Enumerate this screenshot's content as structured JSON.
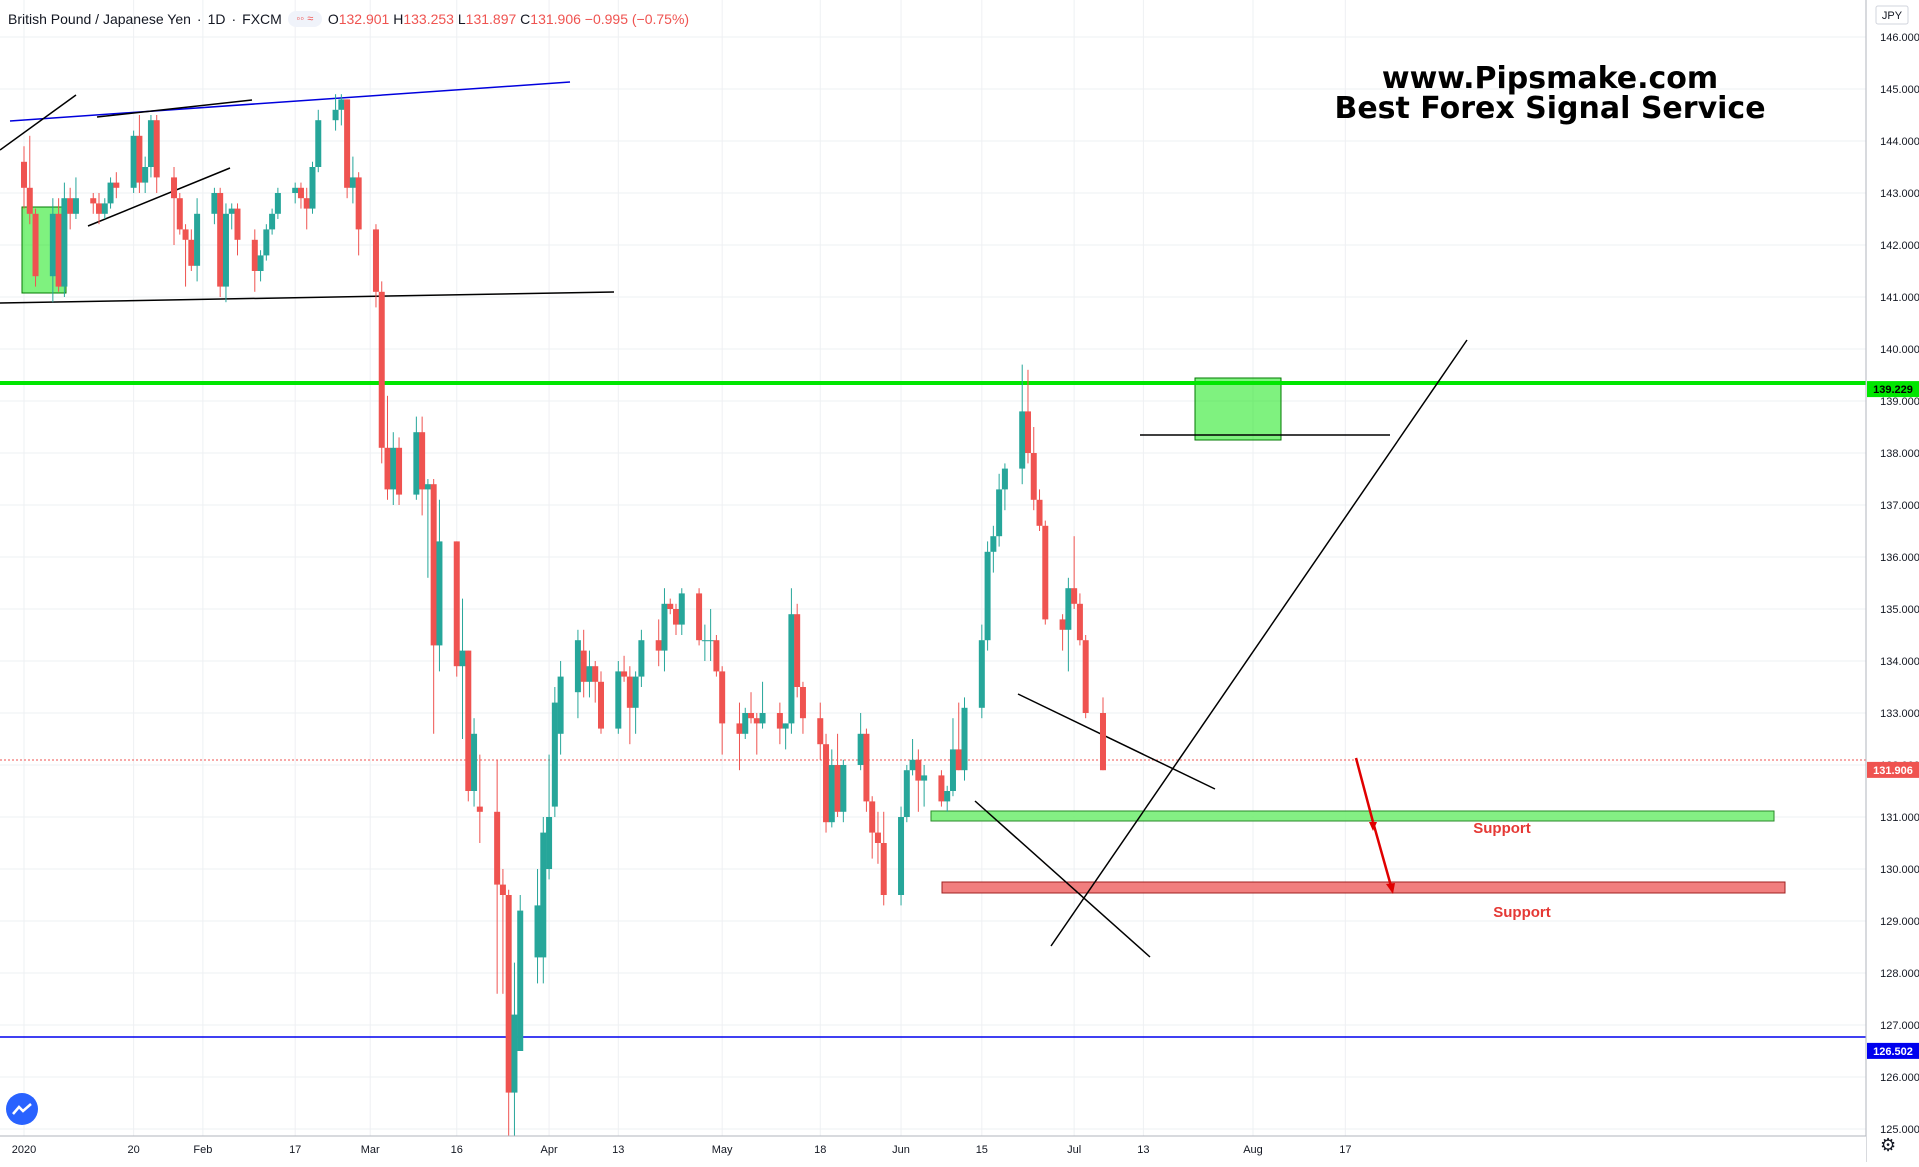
{
  "legend": {
    "symbol": "British Pound / Japanese Yen",
    "interval": "1D",
    "source": "FXCM",
    "o_label": "O",
    "o": "132.901",
    "h_label": "H",
    "h": "133.253",
    "l_label": "L",
    "l": "131.897",
    "c_label": "C",
    "c": "131.906",
    "change": "−0.995 (−0.75%)"
  },
  "watermark": {
    "line1": "www.Pipsmake.com",
    "line2": "Best Forex Signal Service"
  },
  "currency": "JPY",
  "support_labels": [
    "Support",
    "Support"
  ],
  "price_tags": [
    {
      "value": "139.229",
      "color": "#00e600"
    },
    {
      "value": "131.906",
      "color": "#ef5350"
    },
    {
      "value": "126.502",
      "color": "#0000ee"
    }
  ],
  "colors": {
    "up": "#26a69a",
    "down": "#ef5350",
    "grid": "#eef0f3",
    "support": "#e53935"
  },
  "chart_data": {
    "type": "candlestick",
    "y_ticks": [
      "146.000",
      "145.000",
      "144.000",
      "143.000",
      "142.000",
      "141.000",
      "140.000",
      "139.000",
      "138.000",
      "137.000",
      "136.000",
      "135.000",
      "134.000",
      "133.000",
      "132.000",
      "131.000",
      "130.000",
      "129.000",
      "128.000",
      "127.000",
      "126.000",
      "125.000"
    ],
    "ylim": [
      124.6,
      146.4
    ],
    "x_ticks": [
      "2020",
      "20",
      "Feb",
      "17",
      "Mar",
      "16",
      "Apr",
      "13",
      "May",
      "18",
      "Jun",
      "15",
      "Jul",
      "13",
      "Aug",
      "17"
    ],
    "x_tick_dates": [
      "2020-01-01",
      "2020-01-20",
      "2020-02-01",
      "2020-02-17",
      "2020-03-01",
      "2020-03-16",
      "2020-04-01",
      "2020-04-13",
      "2020-05-01",
      "2020-05-18",
      "2020-06-01",
      "2020-06-15",
      "2020-07-01",
      "2020-07-13",
      "2020-08-01",
      "2020-08-17"
    ],
    "candles": [
      {
        "date": "2020-01-01",
        "o": 143.6,
        "h": 143.9,
        "l": 142.7,
        "c": 143.1
      },
      {
        "date": "2020-01-02",
        "o": 143.1,
        "h": 144.1,
        "l": 142.4,
        "c": 142.6
      },
      {
        "date": "2020-01-03",
        "o": 142.6,
        "h": 142.7,
        "l": 141.2,
        "c": 141.4
      },
      {
        "date": "2020-01-06",
        "o": 141.4,
        "h": 142.9,
        "l": 140.9,
        "c": 142.6
      },
      {
        "date": "2020-01-07",
        "o": 142.6,
        "h": 142.9,
        "l": 141.1,
        "c": 141.2
      },
      {
        "date": "2020-01-08",
        "o": 141.2,
        "h": 143.2,
        "l": 141.0,
        "c": 142.9
      },
      {
        "date": "2020-01-09",
        "o": 142.9,
        "h": 143.1,
        "l": 142.3,
        "c": 142.6
      },
      {
        "date": "2020-01-10",
        "o": 142.6,
        "h": 143.3,
        "l": 142.5,
        "c": 142.9
      },
      {
        "date": "2020-01-13",
        "o": 142.9,
        "h": 143.0,
        "l": 142.6,
        "c": 142.8
      },
      {
        "date": "2020-01-14",
        "o": 142.8,
        "h": 143.0,
        "l": 142.4,
        "c": 142.6
      },
      {
        "date": "2020-01-15",
        "o": 142.6,
        "h": 142.9,
        "l": 142.5,
        "c": 142.8
      },
      {
        "date": "2020-01-16",
        "o": 142.8,
        "h": 143.3,
        "l": 142.7,
        "c": 143.2
      },
      {
        "date": "2020-01-17",
        "o": 143.2,
        "h": 143.4,
        "l": 142.9,
        "c": 143.1
      },
      {
        "date": "2020-01-20",
        "o": 143.1,
        "h": 144.2,
        "l": 143.0,
        "c": 144.1
      },
      {
        "date": "2020-01-21",
        "o": 144.1,
        "h": 144.5,
        "l": 143.0,
        "c": 143.2
      },
      {
        "date": "2020-01-22",
        "o": 143.2,
        "h": 143.7,
        "l": 143.0,
        "c": 143.5
      },
      {
        "date": "2020-01-23",
        "o": 143.5,
        "h": 144.5,
        "l": 143.3,
        "c": 144.4
      },
      {
        "date": "2020-01-24",
        "o": 144.4,
        "h": 144.5,
        "l": 143.0,
        "c": 143.3
      },
      {
        "date": "2020-01-27",
        "o": 143.3,
        "h": 143.5,
        "l": 142.0,
        "c": 142.9
      },
      {
        "date": "2020-01-28",
        "o": 142.9,
        "h": 143.0,
        "l": 142.2,
        "c": 142.3
      },
      {
        "date": "2020-01-29",
        "o": 142.3,
        "h": 142.4,
        "l": 141.2,
        "c": 142.1
      },
      {
        "date": "2020-01-30",
        "o": 142.1,
        "h": 142.3,
        "l": 141.5,
        "c": 141.6
      },
      {
        "date": "2020-01-31",
        "o": 141.6,
        "h": 142.9,
        "l": 141.3,
        "c": 142.6
      },
      {
        "date": "2020-02-03",
        "o": 142.6,
        "h": 143.1,
        "l": 142.4,
        "c": 143.0
      },
      {
        "date": "2020-02-04",
        "o": 143.0,
        "h": 143.1,
        "l": 141.0,
        "c": 141.2
      },
      {
        "date": "2020-02-05",
        "o": 141.2,
        "h": 142.8,
        "l": 140.9,
        "c": 142.6
      },
      {
        "date": "2020-02-06",
        "o": 142.6,
        "h": 142.8,
        "l": 142.3,
        "c": 142.7
      },
      {
        "date": "2020-02-07",
        "o": 142.7,
        "h": 142.8,
        "l": 141.8,
        "c": 142.1
      },
      {
        "date": "2020-02-10",
        "o": 142.1,
        "h": 142.3,
        "l": 141.1,
        "c": 141.5
      },
      {
        "date": "2020-02-11",
        "o": 141.5,
        "h": 141.9,
        "l": 141.3,
        "c": 141.8
      },
      {
        "date": "2020-02-12",
        "o": 141.8,
        "h": 142.4,
        "l": 141.7,
        "c": 142.3
      },
      {
        "date": "2020-02-13",
        "o": 142.3,
        "h": 142.7,
        "l": 142.2,
        "c": 142.6
      },
      {
        "date": "2020-02-14",
        "o": 142.6,
        "h": 143.1,
        "l": 142.5,
        "c": 143.0
      },
      {
        "date": "2020-02-17",
        "o": 143.0,
        "h": 143.2,
        "l": 142.8,
        "c": 143.1
      },
      {
        "date": "2020-02-18",
        "o": 143.1,
        "h": 143.2,
        "l": 142.7,
        "c": 142.9
      },
      {
        "date": "2020-02-19",
        "o": 142.9,
        "h": 143.1,
        "l": 142.3,
        "c": 142.7
      },
      {
        "date": "2020-02-20",
        "o": 142.7,
        "h": 143.6,
        "l": 142.6,
        "c": 143.5
      },
      {
        "date": "2020-02-21",
        "o": 143.5,
        "h": 144.6,
        "l": 143.4,
        "c": 144.4
      },
      {
        "date": "2020-02-24",
        "o": 144.4,
        "h": 144.9,
        "l": 144.2,
        "c": 144.6
      },
      {
        "date": "2020-02-25",
        "o": 144.6,
        "h": 144.9,
        "l": 144.3,
        "c": 144.8
      },
      {
        "date": "2020-02-26",
        "o": 144.8,
        "h": 144.8,
        "l": 142.9,
        "c": 143.1
      },
      {
        "date": "2020-02-27",
        "o": 143.1,
        "h": 143.7,
        "l": 142.8,
        "c": 143.3
      },
      {
        "date": "2020-02-28",
        "o": 143.3,
        "h": 143.4,
        "l": 141.8,
        "c": 142.3
      },
      {
        "date": "2020-03-02",
        "o": 142.3,
        "h": 142.4,
        "l": 140.8,
        "c": 141.1
      },
      {
        "date": "2020-03-03",
        "o": 141.1,
        "h": 141.3,
        "l": 137.8,
        "c": 138.1
      },
      {
        "date": "2020-03-04",
        "o": 138.1,
        "h": 139.1,
        "l": 137.1,
        "c": 137.3
      },
      {
        "date": "2020-03-05",
        "o": 137.3,
        "h": 138.4,
        "l": 137.0,
        "c": 138.1
      },
      {
        "date": "2020-03-06",
        "o": 138.1,
        "h": 138.3,
        "l": 137.0,
        "c": 137.2
      },
      {
        "date": "2020-03-09",
        "o": 137.2,
        "h": 138.7,
        "l": 137.1,
        "c": 138.4
      },
      {
        "date": "2020-03-10",
        "o": 138.4,
        "h": 138.7,
        "l": 136.8,
        "c": 137.3
      },
      {
        "date": "2020-03-11",
        "o": 137.3,
        "h": 137.5,
        "l": 135.6,
        "c": 137.4
      },
      {
        "date": "2020-03-12",
        "o": 137.4,
        "h": 137.5,
        "l": 132.6,
        "c": 134.3
      },
      {
        "date": "2020-03-13",
        "o": 134.3,
        "h": 137.1,
        "l": 133.8,
        "c": 136.3
      },
      {
        "date": "2020-03-16",
        "o": 136.3,
        "h": 136.3,
        "l": 133.7,
        "c": 133.9
      },
      {
        "date": "2020-03-17",
        "o": 133.9,
        "h": 135.2,
        "l": 132.5,
        "c": 134.2
      },
      {
        "date": "2020-03-18",
        "o": 134.2,
        "h": 134.2,
        "l": 131.3,
        "c": 131.5
      },
      {
        "date": "2020-03-19",
        "o": 131.5,
        "h": 132.9,
        "l": 131.2,
        "c": 132.6
      },
      {
        "date": "2020-03-20",
        "o": 131.2,
        "h": 132.2,
        "l": 130.5,
        "c": 131.1
      },
      {
        "date": "2020-03-23",
        "o": 131.1,
        "h": 132.1,
        "l": 127.6,
        "c": 129.7
      },
      {
        "date": "2020-03-24",
        "o": 129.7,
        "h": 130.0,
        "l": 127.6,
        "c": 129.5
      },
      {
        "date": "2020-03-25",
        "o": 129.5,
        "h": 129.6,
        "l": 124.8,
        "c": 125.7
      },
      {
        "date": "2020-03-26",
        "o": 125.7,
        "h": 128.2,
        "l": 124.6,
        "c": 127.2
      },
      {
        "date": "2020-03-27",
        "o": 126.5,
        "h": 129.5,
        "l": 126.5,
        "c": 129.2
      },
      {
        "date": "2020-03-30",
        "o": 128.3,
        "h": 130.0,
        "l": 127.8,
        "c": 129.3
      },
      {
        "date": "2020-03-31",
        "o": 128.3,
        "h": 131.0,
        "l": 127.8,
        "c": 130.7
      },
      {
        "date": "2020-04-01",
        "o": 130.0,
        "h": 132.2,
        "l": 129.8,
        "c": 131.0
      },
      {
        "date": "2020-04-02",
        "o": 131.2,
        "h": 133.5,
        "l": 131.0,
        "c": 133.2
      },
      {
        "date": "2020-04-03",
        "o": 132.6,
        "h": 134.0,
        "l": 132.2,
        "c": 133.7
      },
      {
        "date": "2020-04-06",
        "o": 133.4,
        "h": 134.6,
        "l": 132.9,
        "c": 134.4
      },
      {
        "date": "2020-04-07",
        "o": 134.2,
        "h": 134.6,
        "l": 133.3,
        "c": 133.6
      },
      {
        "date": "2020-04-08",
        "o": 133.6,
        "h": 134.2,
        "l": 133.3,
        "c": 133.9
      },
      {
        "date": "2020-04-09",
        "o": 133.9,
        "h": 134.0,
        "l": 133.2,
        "c": 133.6
      },
      {
        "date": "2020-04-10",
        "o": 133.6,
        "h": 133.8,
        "l": 132.6,
        "c": 132.7
      },
      {
        "date": "2020-04-13",
        "o": 132.7,
        "h": 134.0,
        "l": 132.6,
        "c": 133.8
      },
      {
        "date": "2020-04-14",
        "o": 133.8,
        "h": 134.1,
        "l": 133.6,
        "c": 133.7
      },
      {
        "date": "2020-04-15",
        "o": 133.7,
        "h": 133.9,
        "l": 132.4,
        "c": 133.1
      },
      {
        "date": "2020-04-16",
        "o": 133.1,
        "h": 133.8,
        "l": 132.6,
        "c": 133.7
      },
      {
        "date": "2020-04-17",
        "o": 133.7,
        "h": 134.6,
        "l": 133.5,
        "c": 134.4
      },
      {
        "date": "2020-04-20",
        "o": 134.4,
        "h": 134.8,
        "l": 133.9,
        "c": 134.2
      },
      {
        "date": "2020-04-21",
        "o": 134.2,
        "h": 135.4,
        "l": 133.8,
        "c": 135.1
      },
      {
        "date": "2020-04-22",
        "o": 135.1,
        "h": 135.2,
        "l": 134.9,
        "c": 135.0
      },
      {
        "date": "2020-04-23",
        "o": 135.0,
        "h": 135.1,
        "l": 134.5,
        "c": 134.7
      },
      {
        "date": "2020-04-24",
        "o": 134.7,
        "h": 135.4,
        "l": 134.5,
        "c": 135.3
      },
      {
        "date": "2020-04-27",
        "o": 135.3,
        "h": 135.4,
        "l": 134.3,
        "c": 134.4
      },
      {
        "date": "2020-04-28",
        "o": 134.4,
        "h": 134.7,
        "l": 134.0,
        "c": 134.4
      },
      {
        "date": "2020-04-29",
        "o": 134.4,
        "h": 135.0,
        "l": 134.0,
        "c": 134.4
      },
      {
        "date": "2020-04-30",
        "o": 134.4,
        "h": 134.5,
        "l": 133.7,
        "c": 133.8
      },
      {
        "date": "2020-05-01",
        "o": 133.8,
        "h": 133.9,
        "l": 132.2,
        "c": 132.8
      },
      {
        "date": "2020-05-04",
        "o": 132.8,
        "h": 133.2,
        "l": 131.9,
        "c": 132.6
      },
      {
        "date": "2020-05-05",
        "o": 132.6,
        "h": 133.1,
        "l": 132.5,
        "c": 133.0
      },
      {
        "date": "2020-05-06",
        "o": 133.0,
        "h": 133.4,
        "l": 132.8,
        "c": 132.9
      },
      {
        "date": "2020-05-07",
        "o": 132.9,
        "h": 133.0,
        "l": 132.2,
        "c": 132.8
      },
      {
        "date": "2020-05-08",
        "o": 132.8,
        "h": 133.6,
        "l": 132.7,
        "c": 133.0
      },
      {
        "date": "2020-05-11",
        "o": 133.0,
        "h": 133.2,
        "l": 132.4,
        "c": 132.7
      },
      {
        "date": "2020-05-12",
        "o": 132.7,
        "h": 132.8,
        "l": 132.3,
        "c": 132.8
      },
      {
        "date": "2020-05-13",
        "o": 132.8,
        "h": 135.4,
        "l": 132.6,
        "c": 134.9
      },
      {
        "date": "2020-05-14",
        "o": 134.9,
        "h": 135.1,
        "l": 133.3,
        "c": 133.5
      },
      {
        "date": "2020-05-15",
        "o": 133.5,
        "h": 133.6,
        "l": 132.6,
        "c": 132.9
      },
      {
        "date": "2020-05-18",
        "o": 132.9,
        "h": 133.2,
        "l": 132.1,
        "c": 132.4
      },
      {
        "date": "2020-05-19",
        "o": 132.4,
        "h": 132.6,
        "l": 130.7,
        "c": 130.9
      },
      {
        "date": "2020-05-20",
        "o": 130.9,
        "h": 132.3,
        "l": 130.8,
        "c": 132.0
      },
      {
        "date": "2020-05-21",
        "o": 132.0,
        "h": 132.6,
        "l": 131.0,
        "c": 131.1
      },
      {
        "date": "2020-05-22",
        "o": 131.1,
        "h": 132.1,
        "l": 130.9,
        "c": 132.0
      },
      {
        "date": "2020-05-25",
        "o": 132.0,
        "h": 133.0,
        "l": 131.9,
        "c": 132.6
      },
      {
        "date": "2020-05-26",
        "o": 132.6,
        "h": 132.7,
        "l": 131.1,
        "c": 131.3
      },
      {
        "date": "2020-05-27",
        "o": 131.3,
        "h": 131.4,
        "l": 130.2,
        "c": 130.7
      },
      {
        "date": "2020-05-28",
        "o": 130.7,
        "h": 131.1,
        "l": 130.1,
        "c": 130.5
      },
      {
        "date": "2020-05-29",
        "o": 130.5,
        "h": 131.1,
        "l": 129.3,
        "c": 129.5
      },
      {
        "date": "2020-06-01",
        "o": 129.5,
        "h": 131.2,
        "l": 129.3,
        "c": 131.0
      },
      {
        "date": "2020-06-02",
        "o": 131.0,
        "h": 132.0,
        "l": 130.9,
        "c": 131.9
      },
      {
        "date": "2020-06-03",
        "o": 131.9,
        "h": 132.5,
        "l": 131.8,
        "c": 132.1
      },
      {
        "date": "2020-06-04",
        "o": 132.1,
        "h": 132.3,
        "l": 131.1,
        "c": 131.7
      },
      {
        "date": "2020-06-05",
        "o": 131.7,
        "h": 132.0,
        "l": 131.2,
        "c": 131.8
      },
      {
        "date": "2020-06-08",
        "o": 131.8,
        "h": 131.9,
        "l": 131.2,
        "c": 131.3
      },
      {
        "date": "2020-06-09",
        "o": 131.3,
        "h": 131.6,
        "l": 131.1,
        "c": 131.5
      },
      {
        "date": "2020-06-10",
        "o": 131.5,
        "h": 132.9,
        "l": 131.4,
        "c": 132.3
      },
      {
        "date": "2020-06-11",
        "o": 132.3,
        "h": 133.2,
        "l": 131.9,
        "c": 131.9
      },
      {
        "date": "2020-06-12",
        "o": 131.9,
        "h": 133.3,
        "l": 131.7,
        "c": 133.1
      },
      {
        "date": "2020-06-15",
        "o": 133.1,
        "h": 134.7,
        "l": 132.9,
        "c": 134.4
      },
      {
        "date": "2020-06-16",
        "o": 134.4,
        "h": 136.3,
        "l": 134.2,
        "c": 136.1
      },
      {
        "date": "2020-06-17",
        "o": 136.1,
        "h": 136.6,
        "l": 135.7,
        "c": 136.4
      },
      {
        "date": "2020-06-18",
        "o": 136.4,
        "h": 137.6,
        "l": 136.2,
        "c": 137.3
      },
      {
        "date": "2020-06-19",
        "o": 137.3,
        "h": 137.8,
        "l": 136.9,
        "c": 137.7
      },
      {
        "date": "2020-06-22",
        "o": 137.7,
        "h": 139.7,
        "l": 137.4,
        "c": 138.8
      },
      {
        "date": "2020-06-23",
        "o": 138.8,
        "h": 139.6,
        "l": 137.8,
        "c": 138.0
      },
      {
        "date": "2020-06-24",
        "o": 138.0,
        "h": 138.5,
        "l": 136.9,
        "c": 137.1
      },
      {
        "date": "2020-06-25",
        "o": 137.1,
        "h": 137.3,
        "l": 136.5,
        "c": 136.6
      },
      {
        "date": "2020-06-26",
        "o": 136.6,
        "h": 136.7,
        "l": 134.7,
        "c": 134.8
      },
      {
        "date": "2020-06-29",
        "o": 134.8,
        "h": 134.9,
        "l": 134.2,
        "c": 134.6
      },
      {
        "date": "2020-06-30",
        "o": 134.6,
        "h": 135.6,
        "l": 133.8,
        "c": 135.4
      },
      {
        "date": "2020-07-01",
        "o": 135.4,
        "h": 136.4,
        "l": 135.0,
        "c": 135.1
      },
      {
        "date": "2020-07-02",
        "o": 135.1,
        "h": 135.3,
        "l": 134.3,
        "c": 134.4
      },
      {
        "date": "2020-07-03",
        "o": 134.4,
        "h": 134.5,
        "l": 132.9,
        "c": 133.0
      },
      {
        "date": "2020-07-06",
        "o": 133.0,
        "h": 133.3,
        "l": 131.9,
        "c": 131.9
      }
    ]
  }
}
